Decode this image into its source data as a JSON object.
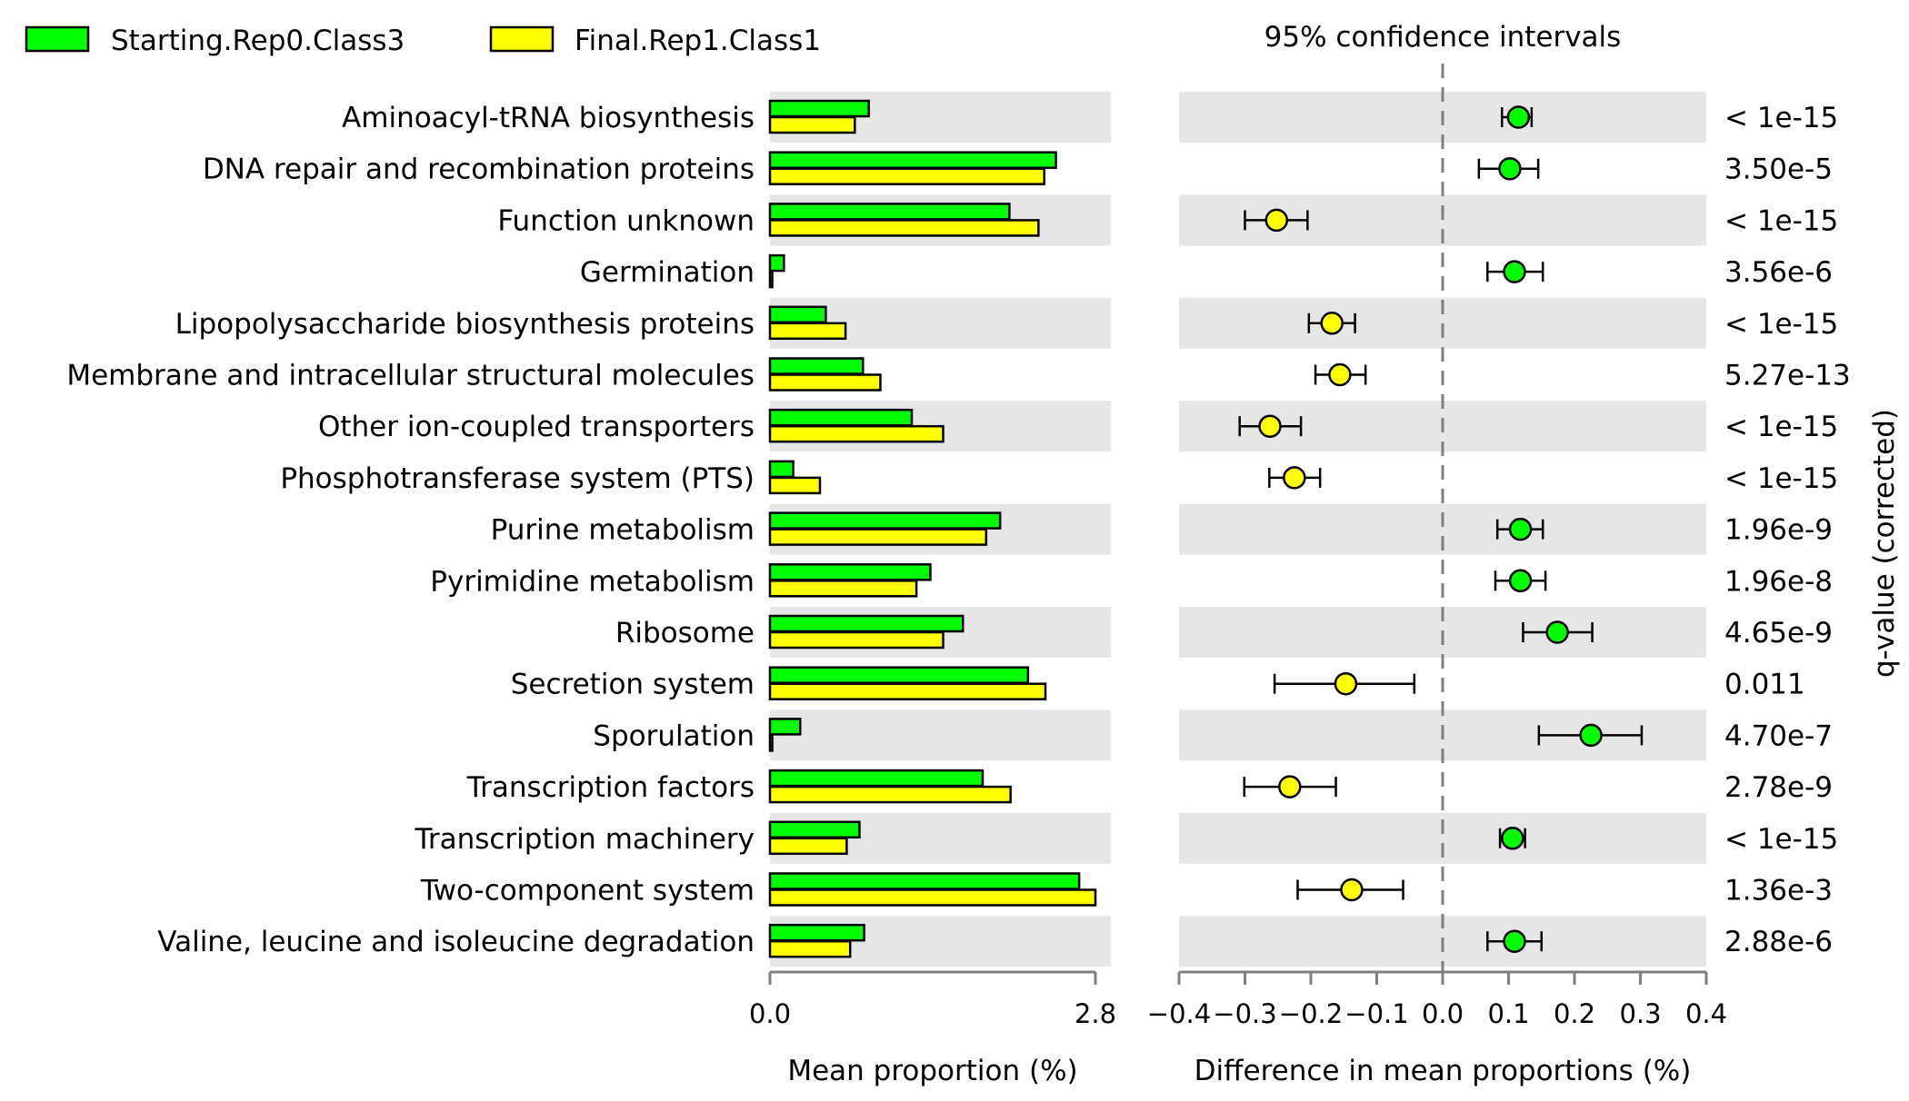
{
  "chart_data": [
    {
      "type": "bar",
      "orientation": "horizontal",
      "xlabel": "Mean proportion (%)",
      "xlim": [
        0.0,
        2.8
      ],
      "xticks": [
        "0.0",
        "2.8"
      ],
      "categories": [
        "Aminoacyl-tRNA biosynthesis",
        "DNA repair and recombination proteins",
        "Function unknown",
        "Germination",
        "Lipopolysaccharide biosynthesis proteins",
        "Membrane and intracellular structural molecules",
        "Other ion-coupled transporters",
        "Phosphotransferase system (PTS)",
        "Purine metabolism",
        "Pyrimidine metabolism",
        "Ribosome",
        "Secretion system",
        "Sporulation",
        "Transcription factors",
        "Transcription machinery",
        "Two-component system",
        "Valine, leucine and isoleucine degradation"
      ],
      "series": [
        {
          "name": "Starting.Rep0.Class3",
          "color": "#00ff00",
          "values": [
            0.85,
            2.46,
            2.06,
            0.12,
            0.48,
            0.8,
            1.22,
            0.2,
            1.98,
            1.38,
            1.66,
            2.22,
            0.26,
            1.83,
            0.77,
            2.66,
            0.81
          ]
        },
        {
          "name": "Final.Rep1.Class1",
          "color": "#ffff00",
          "values": [
            0.73,
            2.36,
            2.31,
            0.02,
            0.65,
            0.95,
            1.49,
            0.43,
            1.86,
            1.26,
            1.49,
            2.37,
            0.02,
            2.07,
            0.66,
            2.8,
            0.69
          ]
        }
      ],
      "legend_position": "top-left",
      "background_bands": "alternating grey"
    },
    {
      "type": "scatter",
      "title": "95% confidence intervals",
      "xlabel": "Difference in mean proportions (%)",
      "xlim": [
        -0.4,
        0.4
      ],
      "xticks": [
        "−0.4",
        "−0.3",
        "−0.2",
        "−0.1",
        "0.0",
        "0.1",
        "0.2",
        "0.3",
        "0.4"
      ],
      "reference_line": 0.0,
      "points": [
        {
          "category": "Aminoacyl-tRNA biosynthesis",
          "diff": 0.115,
          "ci": [
            0.09,
            0.135
          ],
          "group": "Starting.Rep0.Class3",
          "color": "#00ff00"
        },
        {
          "category": "DNA repair and recombination proteins",
          "diff": 0.102,
          "ci": [
            0.055,
            0.145
          ],
          "group": "Starting.Rep0.Class3",
          "color": "#00ff00"
        },
        {
          "category": "Function unknown",
          "diff": -0.252,
          "ci": [
            -0.3,
            -0.205
          ],
          "group": "Final.Rep1.Class1",
          "color": "#ffff00"
        },
        {
          "category": "Germination",
          "diff": 0.109,
          "ci": [
            0.068,
            0.152
          ],
          "group": "Starting.Rep0.Class3",
          "color": "#00ff00"
        },
        {
          "category": "Lipopolysaccharide biosynthesis proteins",
          "diff": -0.168,
          "ci": [
            -0.203,
            -0.133
          ],
          "group": "Final.Rep1.Class1",
          "color": "#ffff00"
        },
        {
          "category": "Membrane and intracellular structural molecules",
          "diff": -0.156,
          "ci": [
            -0.193,
            -0.117
          ],
          "group": "Final.Rep1.Class1",
          "color": "#ffff00"
        },
        {
          "category": "Other ion-coupled transporters",
          "diff": -0.262,
          "ci": [
            -0.308,
            -0.215
          ],
          "group": "Final.Rep1.Class1",
          "color": "#ffff00"
        },
        {
          "category": "Phosphotransferase system (PTS)",
          "diff": -0.225,
          "ci": [
            -0.263,
            -0.186
          ],
          "group": "Final.Rep1.Class1",
          "color": "#ffff00"
        },
        {
          "category": "Purine metabolism",
          "diff": 0.118,
          "ci": [
            0.083,
            0.152
          ],
          "group": "Starting.Rep0.Class3",
          "color": "#00ff00"
        },
        {
          "category": "Pyrimidine metabolism",
          "diff": 0.118,
          "ci": [
            0.08,
            0.156
          ],
          "group": "Starting.Rep0.Class3",
          "color": "#00ff00"
        },
        {
          "category": "Ribosome",
          "diff": 0.174,
          "ci": [
            0.122,
            0.227
          ],
          "group": "Starting.Rep0.Class3",
          "color": "#00ff00"
        },
        {
          "category": "Secretion system",
          "diff": -0.147,
          "ci": [
            -0.255,
            -0.043
          ],
          "group": "Final.Rep1.Class1",
          "color": "#ffff00"
        },
        {
          "category": "Sporulation",
          "diff": 0.225,
          "ci": [
            0.146,
            0.302
          ],
          "group": "Starting.Rep0.Class3",
          "color": "#00ff00"
        },
        {
          "category": "Transcription factors",
          "diff": -0.232,
          "ci": [
            -0.301,
            -0.162
          ],
          "group": "Final.Rep1.Class1",
          "color": "#ffff00"
        },
        {
          "category": "Transcription machinery",
          "diff": 0.106,
          "ci": [
            0.087,
            0.125
          ],
          "group": "Starting.Rep0.Class3",
          "color": "#00ff00"
        },
        {
          "category": "Two-component system",
          "diff": -0.138,
          "ci": [
            -0.22,
            -0.06
          ],
          "group": "Final.Rep1.Class1",
          "color": "#ffff00"
        },
        {
          "category": "Valine, leucine and isoleucine degradation",
          "diff": 0.109,
          "ci": [
            0.068,
            0.15
          ],
          "group": "Starting.Rep0.Class3",
          "color": "#00ff00"
        }
      ],
      "q_value_label": "q-value (corrected)",
      "q_values": [
        "< 1e-15",
        "3.50e-5",
        "< 1e-15",
        "3.56e-6",
        "< 1e-15",
        "5.27e-13",
        "< 1e-15",
        "< 1e-15",
        "1.96e-9",
        "1.96e-8",
        "4.65e-9",
        "0.011",
        "4.70e-7",
        "2.78e-9",
        "< 1e-15",
        "1.36e-3",
        "2.88e-6"
      ]
    }
  ],
  "colors": {
    "band": "#e6e6e6",
    "axis": "#808080",
    "outline": "#000000"
  }
}
